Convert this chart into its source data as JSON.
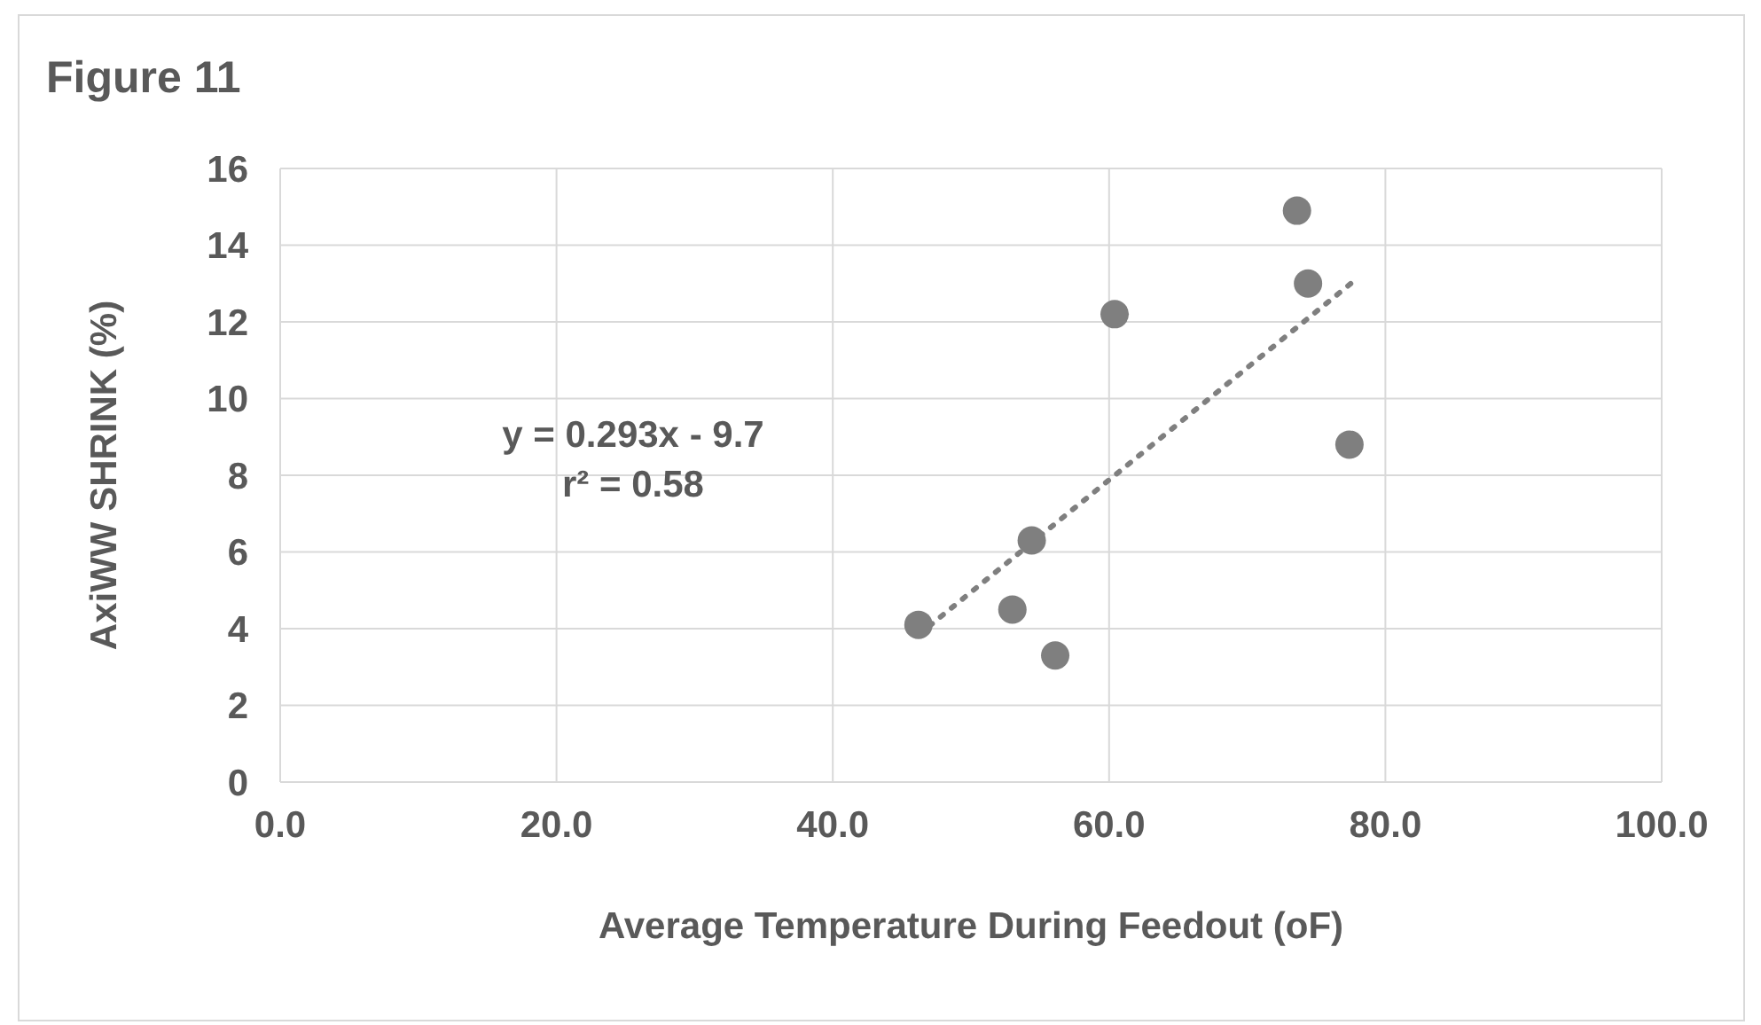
{
  "chart_data": {
    "type": "scatter",
    "title": "Figure 11",
    "xlabel": "Average Temperature During Feedout (oF)",
    "ylabel": "AxiWW SHRINK (%)",
    "x": [
      46.2,
      53.0,
      54.4,
      56.1,
      60.4,
      73.6,
      74.4,
      77.4
    ],
    "series": [
      {
        "color": "#7f7f7f",
        "values": [
          4.1,
          4.5,
          6.3,
          3.3,
          12.2,
          14.9,
          13.0,
          8.8
        ],
        "marker": "circle"
      },
      {
        "type": "line",
        "color": "#7f7f7f",
        "x": [
          46.2,
          77.5
        ],
        "values": [
          3.84,
          13.0
        ],
        "line_style": "dotted",
        "marker": "none"
      }
    ],
    "annotations": [
      "y = 0.293x - 9.7",
      "r² = 0.58"
    ],
    "xlim": [
      0,
      100
    ],
    "xticks": [
      {
        "value": 0,
        "label": "0.0"
      },
      {
        "value": 20,
        "label": "20.0"
      },
      {
        "value": 40,
        "label": "40.0"
      },
      {
        "value": 60,
        "label": "60.0"
      },
      {
        "value": 80,
        "label": "80.0"
      },
      {
        "value": 100,
        "label": "100.0"
      }
    ],
    "ylim": [
      0,
      16
    ],
    "yticks": [
      0,
      2,
      4,
      6,
      8,
      10,
      12,
      14,
      16
    ],
    "grid": true,
    "legend": false
  }
}
